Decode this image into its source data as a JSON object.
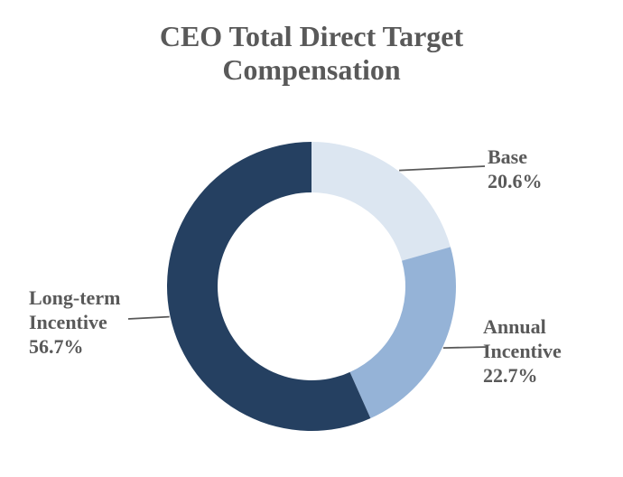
{
  "page": {
    "background": "#FFFFFF"
  },
  "chart_data": {
    "type": "pie",
    "subtype": "donut",
    "title": "CEO Total Direct Target Compensation",
    "title_lines": [
      "CEO Total Direct Target",
      "Compensation"
    ],
    "title_color": "#595959",
    "text_color": "#595959",
    "leader_line_color": "#595959",
    "start_angle_deg": 0,
    "direction": "clockwise",
    "donut_hole_ratio": 0.65,
    "legend_position": "none",
    "labels_style": "outside-callout",
    "slices": [
      {
        "name": "Base",
        "value_pct": 20.6,
        "color": "#DCE6F1",
        "label_lines": [
          "Base",
          "20.6%"
        ]
      },
      {
        "name": "Annual Incentive",
        "value_pct": 22.7,
        "color": "#95B3D7",
        "label_lines": [
          "Annual",
          "Incentive",
          "22.7%"
        ]
      },
      {
        "name": "Long-term Incentive",
        "value_pct": 56.7,
        "color": "#254061",
        "label_lines": [
          "Long-term",
          "Incentive",
          "56.7%"
        ]
      }
    ]
  }
}
